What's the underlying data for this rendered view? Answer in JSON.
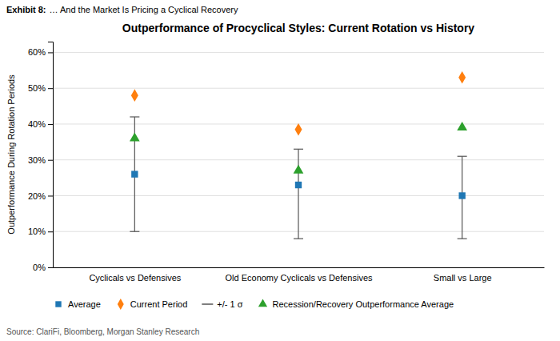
{
  "chart_data": {
    "type": "scatter",
    "title": "Outperformance of Procyclical Styles: Current Rotation vs History",
    "ylabel": "Outperformance During Rotation Periods",
    "annotations": [
      "Exhibit 8:",
      "… And the Market Is Pricing a Cyclical Recovery",
      "Source: ClariFi, Bloomberg, Morgan Stanley Research"
    ],
    "categories": [
      "Cyclicals vs Defensives",
      "Old Economy Cyclicals vs Defensives",
      "Small vs Large"
    ],
    "series": [
      {
        "name": "Average",
        "marker": "square",
        "values": [
          26,
          23,
          20
        ]
      },
      {
        "name": "Current Period",
        "marker": "diamond",
        "values": [
          48,
          38.5,
          53
        ]
      },
      {
        "name": "+/- 1 σ",
        "type": "errorbar",
        "low": [
          10,
          8,
          8
        ],
        "high": [
          42,
          33,
          31
        ]
      },
      {
        "name": "Recession/Recovery Outperformance Average",
        "marker": "triangle",
        "values": [
          36,
          27,
          39
        ]
      }
    ],
    "ylim": [
      0,
      63
    ],
    "yticks": [
      {
        "value": 0,
        "label": "0%"
      },
      {
        "value": 10,
        "label": "10%"
      },
      {
        "value": 20,
        "label": "20%"
      },
      {
        "value": 30,
        "label": "30%"
      },
      {
        "value": 40,
        "label": "40%"
      },
      {
        "value": 50,
        "label": "50%"
      },
      {
        "value": 60,
        "label": "60%"
      }
    ],
    "grid": true,
    "legend": "bottom"
  }
}
